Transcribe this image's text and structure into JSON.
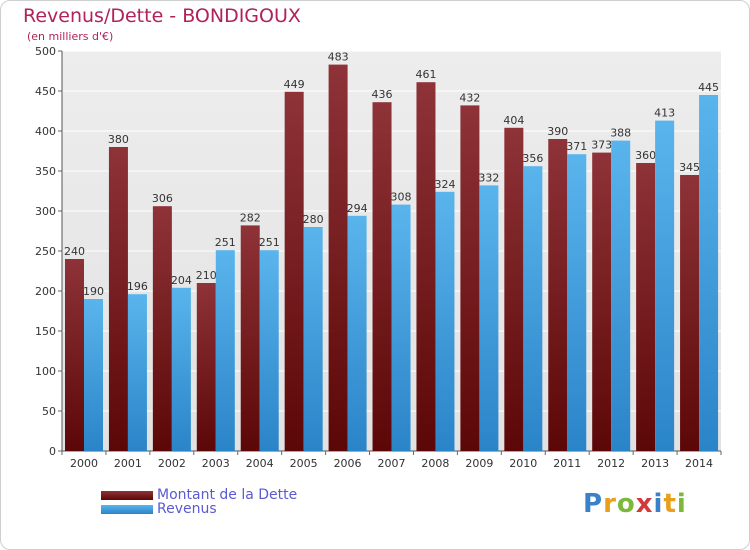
{
  "chart_data": {
    "type": "bar",
    "title": "Revenus/Dette - BONDIGOUX",
    "subtitle": "(en milliers d'€)",
    "categories": [
      "2000",
      "2001",
      "2002",
      "2003",
      "2004",
      "2005",
      "2006",
      "2007",
      "2008",
      "2009",
      "2010",
      "2011",
      "2012",
      "2013",
      "2014"
    ],
    "series": [
      {
        "name": "Montant de la Dette",
        "color": "#8b2a2a",
        "values": [
          240,
          380,
          306,
          210,
          282,
          449,
          483,
          436,
          461,
          432,
          404,
          390,
          373,
          360,
          345
        ]
      },
      {
        "name": "Revenus",
        "color": "#4aa3e0",
        "values": [
          190,
          196,
          204,
          251,
          251,
          280,
          294,
          308,
          324,
          332,
          356,
          371,
          388,
          413,
          445
        ]
      }
    ],
    "ylim": [
      0,
      500
    ],
    "yticks": [
      0,
      50,
      100,
      150,
      200,
      250,
      300,
      350,
      400,
      450,
      500
    ],
    "grid": true,
    "legend": "bottom-left"
  },
  "logo": {
    "letters": [
      "P",
      "r",
      "o",
      "x",
      "i",
      "t",
      "i"
    ]
  }
}
